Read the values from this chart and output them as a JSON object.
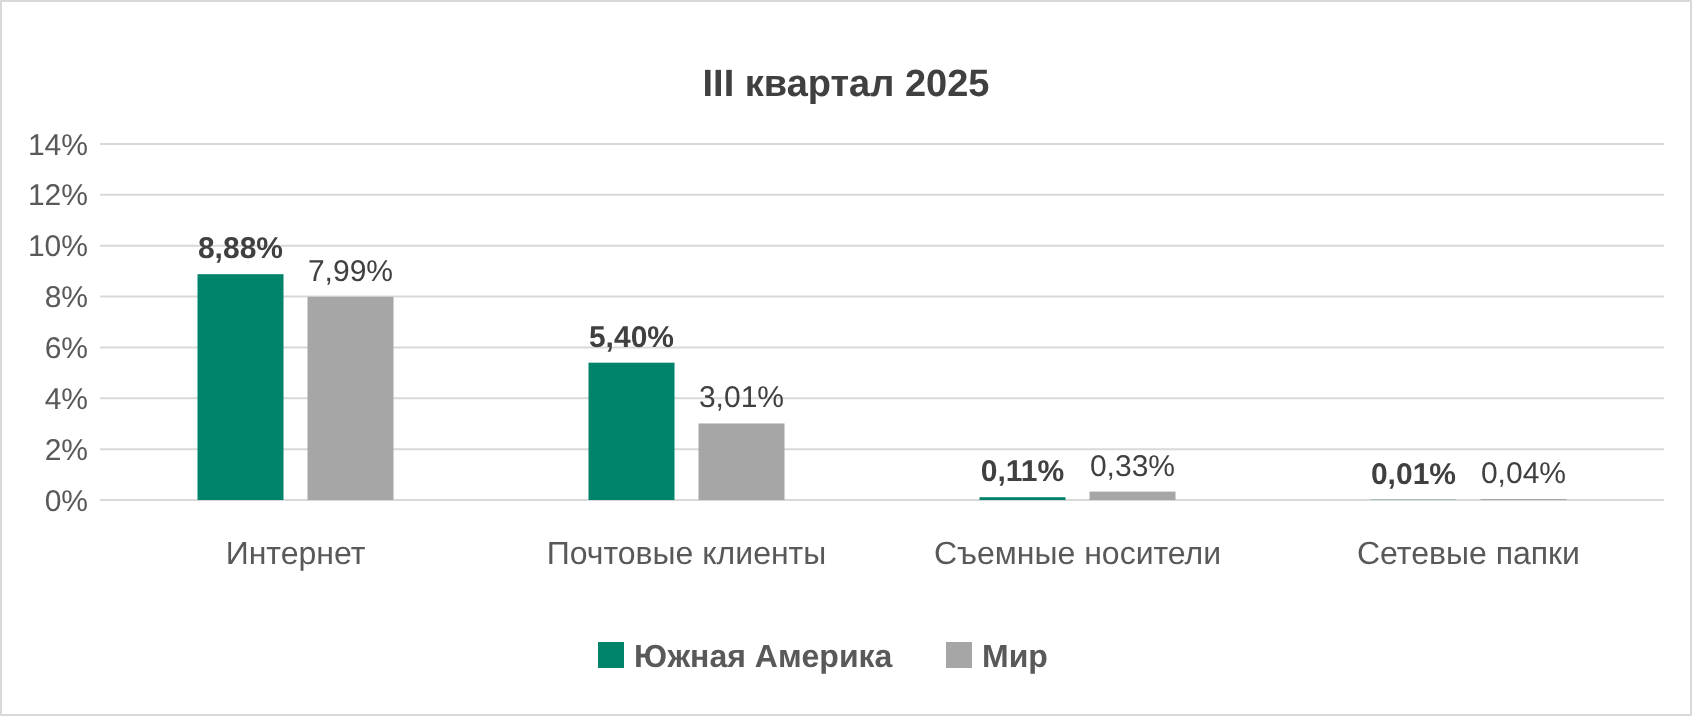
{
  "chart_data": {
    "type": "bar",
    "title": "III квартал 2025",
    "categories": [
      "Интернет",
      "Почтовые клиенты",
      "Съемные носители",
      "Сетевые папки"
    ],
    "series": [
      {
        "name": "Южная Америка",
        "color": "#00836b",
        "values": [
          8.88,
          5.4,
          0.11,
          0.01
        ],
        "value_labels": [
          "8,88%",
          "5,40%",
          "0,11%",
          "0,01%"
        ]
      },
      {
        "name": "Мир",
        "color": "#a6a6a6",
        "values": [
          7.99,
          3.01,
          0.33,
          0.04
        ],
        "value_labels": [
          "7,99%",
          "3,01%",
          "0,33%",
          "0,04%"
        ]
      }
    ],
    "ylim": [
      0,
      14
    ],
    "yticks": [
      {
        "value": 0,
        "label": "0%"
      },
      {
        "value": 2,
        "label": "2%"
      },
      {
        "value": 4,
        "label": "4%"
      },
      {
        "value": 6,
        "label": "6%"
      },
      {
        "value": 8,
        "label": "8%"
      },
      {
        "value": 10,
        "label": "10%"
      },
      {
        "value": 12,
        "label": "12%"
      },
      {
        "value": 14,
        "label": "14%"
      }
    ],
    "grid": "y",
    "legend": "bottom"
  }
}
